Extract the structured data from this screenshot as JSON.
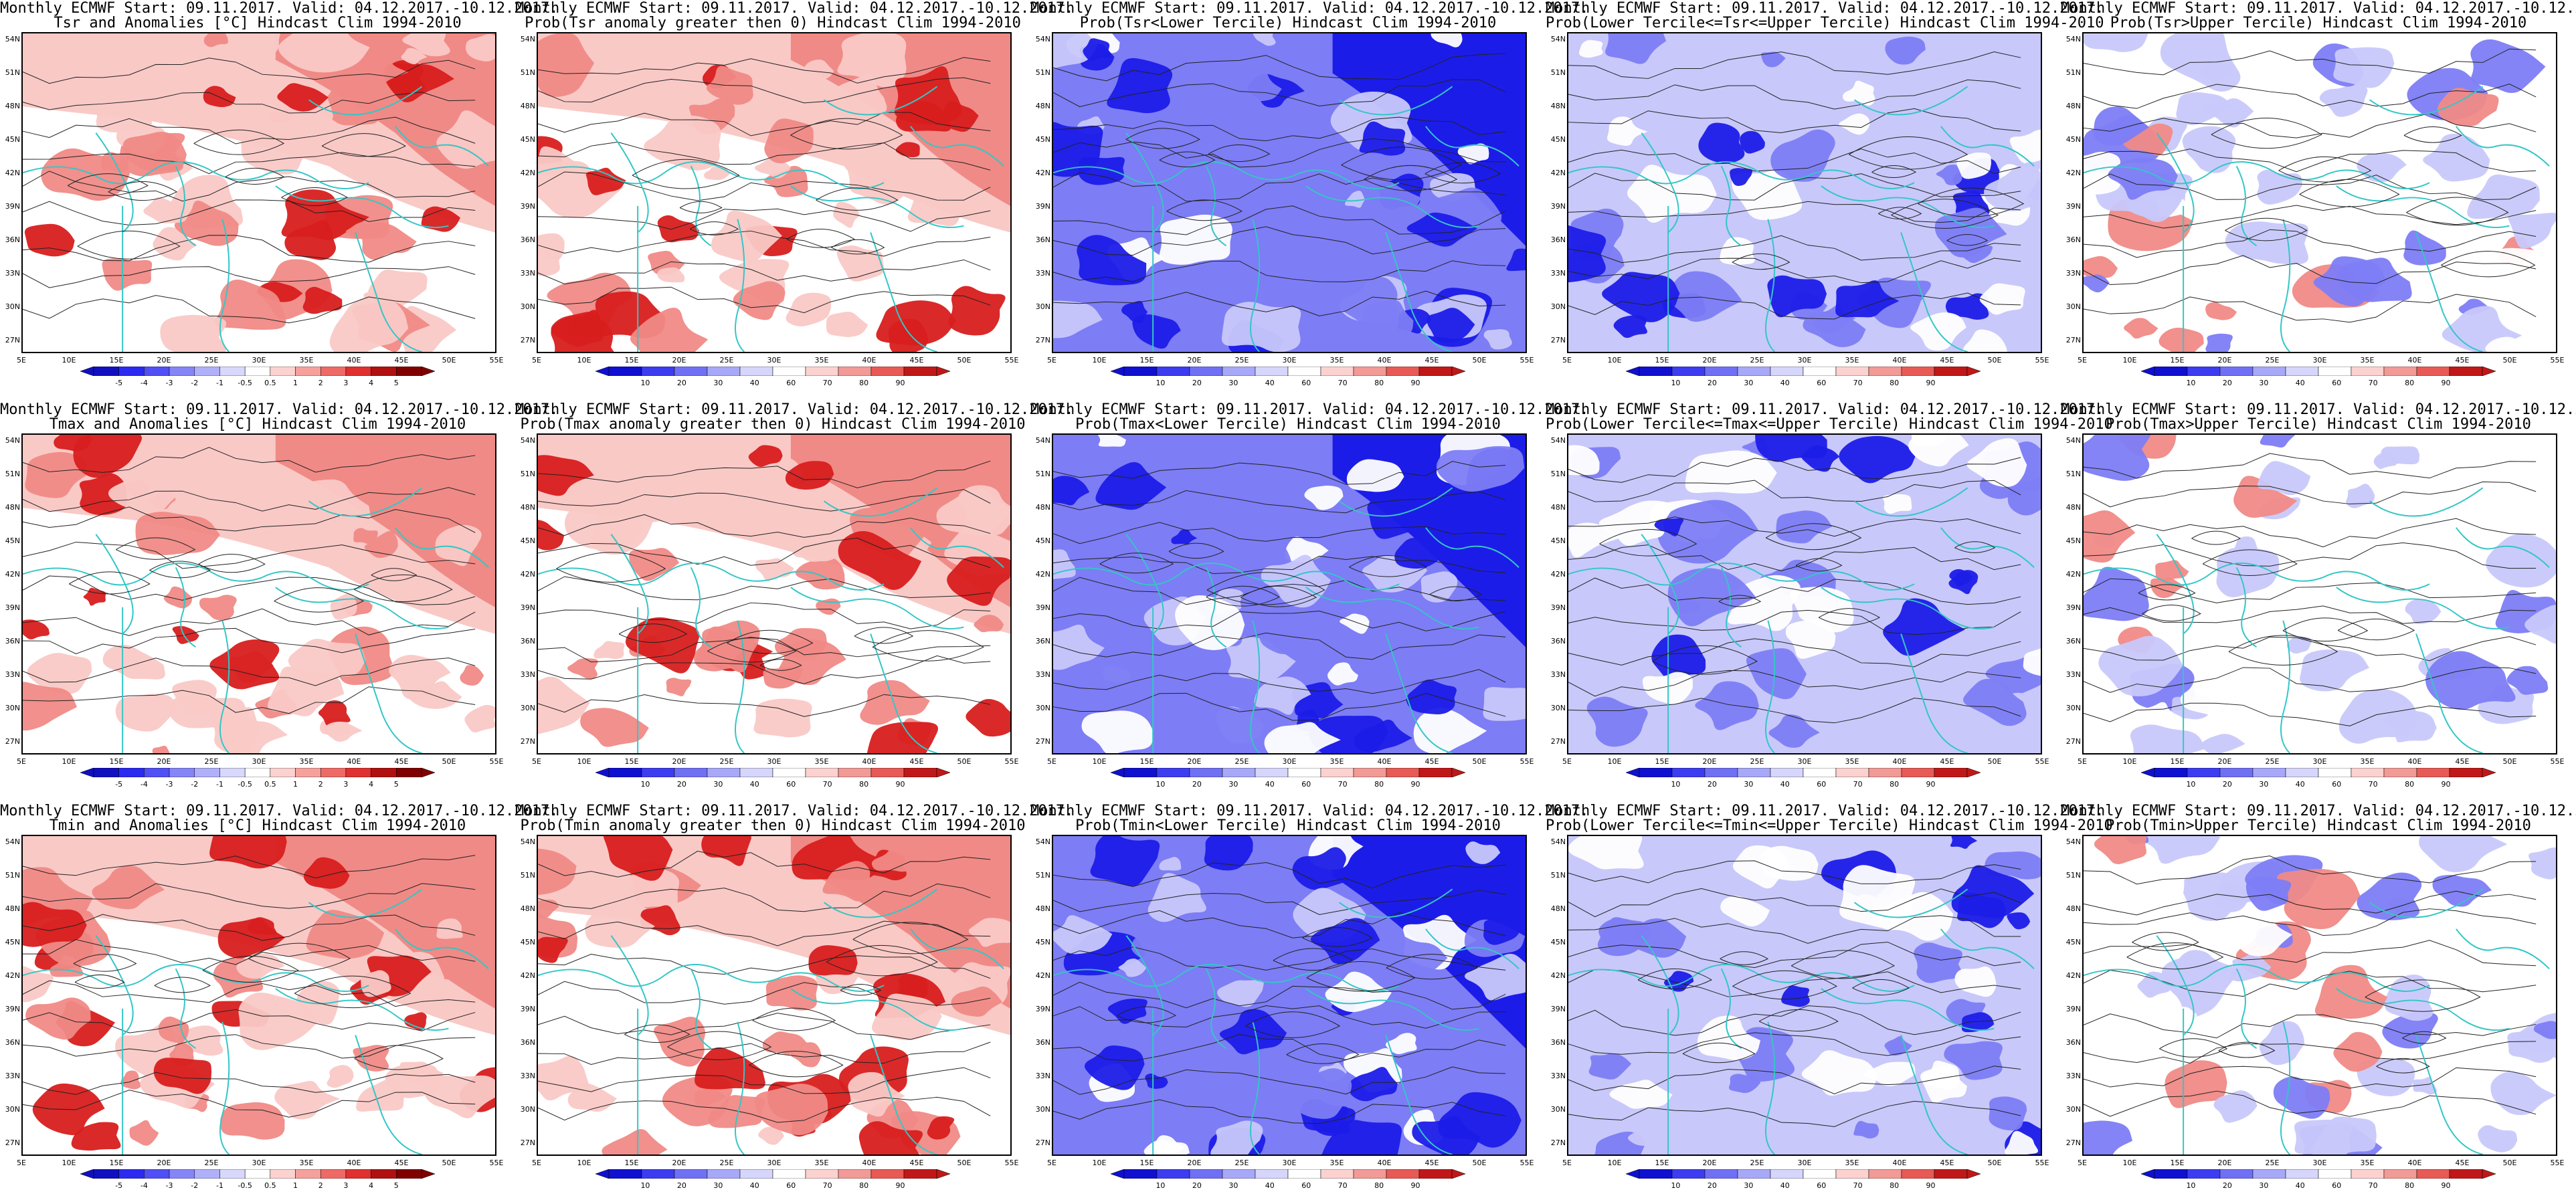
{
  "titles": {
    "line1": "Monthly ECMWF Start: 09.11.2017. Valid: 04.12.2017.-10.12.2017.",
    "p11": "Tsr and Anomalies [°C] Hindcast Clim 1994-2010",
    "p12": "Prob(Tsr anomaly greater then 0) Hindcast Clim 1994-2010",
    "p13": "Prob(Tsr<Lower Tercile) Hindcast Clim 1994-2010",
    "p14": "Prob(Lower Tercile<=Tsr<=Upper Tercile) Hindcast Clim 1994-2010",
    "p15": "Prob(Tsr>Upper Tercile) Hindcast Clim 1994-2010",
    "p21": "Tmax and Anomalies [°C] Hindcast Clim 1994-2010",
    "p22": "Prob(Tmax anomaly greater then 0) Hindcast Clim 1994-2010",
    "p23": "Prob(Tmax<Lower Tercile) Hindcast Clim 1994-2010",
    "p24": "Prob(Lower Tercile<=Tmax<=Upper Tercile) Hindcast Clim 1994-2010",
    "p25": "Prob(Tmax>Upper Tercile) Hindcast Clim 1994-2010",
    "p31": "Tmin and Anomalies [°C] Hindcast Clim 1994-2010",
    "p32": "Prob(Tmin anomaly greater then 0) Hindcast Clim 1994-2010",
    "p33": "Prob(Tmin<Lower Tercile) Hindcast Clim 1994-2010",
    "p34": "Prob(Lower Tercile<=Tmin<=Upper Tercile) Hindcast Clim 1994-2010",
    "p35": "Prob(Tmin>Upper Tercile) Hindcast Clim 1994-2010"
  },
  "axes": {
    "lat": [
      "54N",
      "51N",
      "48N",
      "45N",
      "42N",
      "39N",
      "36N",
      "33N",
      "30N",
      "27N"
    ],
    "lon": [
      "5E",
      "10E",
      "15E",
      "20E",
      "25E",
      "30E",
      "35E",
      "40E",
      "45E",
      "50E",
      "55E"
    ]
  },
  "colorbars": {
    "anomaly": [
      "-5",
      "-4",
      "-3",
      "-2",
      "-1",
      "-0.5",
      "0.5",
      "1",
      "2",
      "3",
      "4",
      "5"
    ],
    "prob": [
      "10",
      "20",
      "30",
      "40",
      "60",
      "70",
      "80",
      "90"
    ]
  },
  "colors": {
    "warm_light": "#f9c9c6",
    "warm_mid": "#f08a86",
    "warm_dark": "#d81e1e",
    "cool_light": "#c8c8fb",
    "cool_mid": "#7d7df5",
    "cool_dark": "#1c1ce8",
    "coast": "#34c6c6",
    "contour": "#222222"
  }
}
